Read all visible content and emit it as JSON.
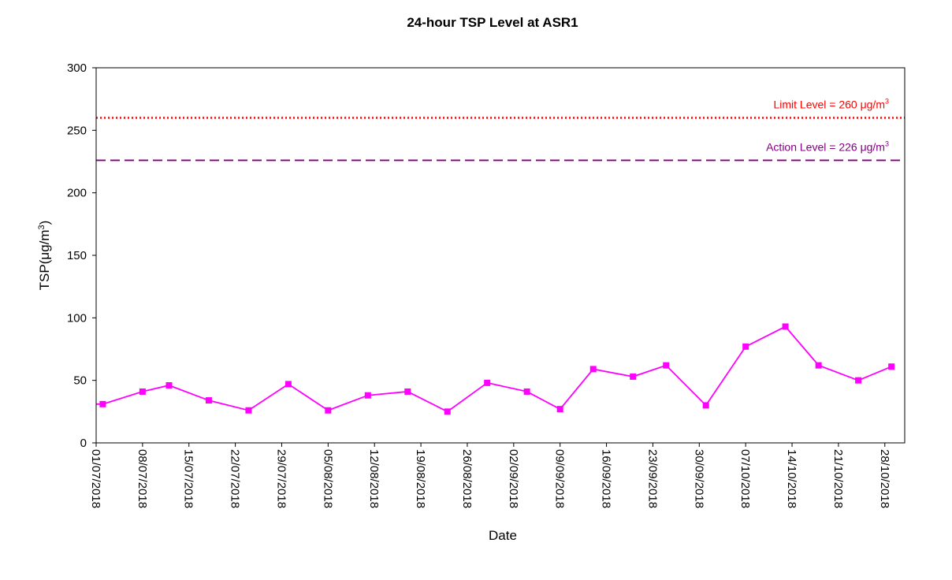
{
  "chart_data": {
    "type": "line",
    "title": "24-hour TSP Level at ASR1",
    "xlabel": "Date",
    "ylabel": {
      "main": "TSP(μg/m",
      "sup": "3",
      "close": ")"
    },
    "ylim": [
      0,
      300
    ],
    "yticks": [
      0,
      50,
      100,
      150,
      200,
      250,
      300
    ],
    "x_range": [
      "2018-07-01",
      "2018-10-31"
    ],
    "xtick_labels": [
      "01/07/2018",
      "08/07/2018",
      "15/07/2018",
      "22/07/2018",
      "29/07/2018",
      "05/08/2018",
      "12/08/2018",
      "19/08/2018",
      "26/08/2018",
      "02/09/2018",
      "09/09/2018",
      "16/09/2018",
      "23/09/2018",
      "30/09/2018",
      "07/10/2018",
      "14/10/2018",
      "21/10/2018",
      "28/10/2018"
    ],
    "grid": false,
    "series": [
      {
        "color": "#ff00ff",
        "marker": "square",
        "points": [
          {
            "x": "2018-07-01",
            "y": 31
          },
          {
            "x": "2018-07-02",
            "y": 31
          },
          {
            "x": "2018-07-08",
            "y": 41
          },
          {
            "x": "2018-07-12",
            "y": 46
          },
          {
            "x": "2018-07-18",
            "y": 34
          },
          {
            "x": "2018-07-24",
            "y": 26
          },
          {
            "x": "2018-07-30",
            "y": 47
          },
          {
            "x": "2018-08-05",
            "y": 26
          },
          {
            "x": "2018-08-11",
            "y": 38
          },
          {
            "x": "2018-08-17",
            "y": 41
          },
          {
            "x": "2018-08-23",
            "y": 25
          },
          {
            "x": "2018-08-29",
            "y": 48
          },
          {
            "x": "2018-09-04",
            "y": 41
          },
          {
            "x": "2018-09-09",
            "y": 27
          },
          {
            "x": "2018-09-14",
            "y": 59
          },
          {
            "x": "2018-09-20",
            "y": 53
          },
          {
            "x": "2018-09-25",
            "y": 62
          },
          {
            "x": "2018-10-01",
            "y": 30
          },
          {
            "x": "2018-10-07",
            "y": 77
          },
          {
            "x": "2018-10-13",
            "y": 93
          },
          {
            "x": "2018-10-18",
            "y": 62
          },
          {
            "x": "2018-10-24",
            "y": 50
          },
          {
            "x": "2018-10-29",
            "y": 61
          }
        ]
      }
    ],
    "reference_lines": [
      {
        "label": "Limit Level = 260 μg/m",
        "sup": "3",
        "y": 260,
        "color": "#ff0000",
        "style": "dotted"
      },
      {
        "label": "Action Level = 226 μg/m",
        "sup": "3",
        "y": 226,
        "color": "#800080",
        "style": "dashed"
      }
    ]
  }
}
